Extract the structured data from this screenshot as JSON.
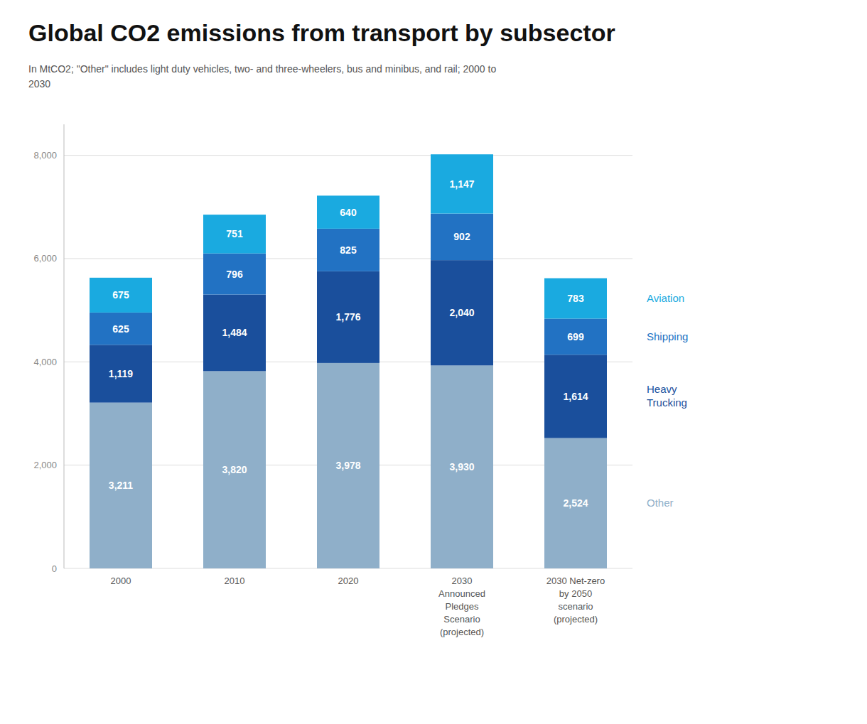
{
  "chart_data": {
    "type": "bar",
    "stacked": true,
    "title": "Global CO2 emissions from transport by subsector",
    "subtitle": "In MtCO2; \"Other\" includes light duty vehicles, two- and three-wheelers, bus and minibus, and rail; 2000 to\n2030",
    "categories": [
      "2000",
      "2010",
      "2020",
      "2030\nAnnounced\nPledges\nScenario\n(projected)",
      "2030 Net-zero\nby 2050\nscenario\n(projected)"
    ],
    "series": [
      {
        "name": "Other",
        "color": "#8fafc9",
        "values": [
          3211,
          3820,
          3978,
          3930,
          2524
        ],
        "value_labels": [
          "3,211",
          "3,820",
          "3,978",
          "3,930",
          "2,524"
        ]
      },
      {
        "name": "Heavy\nTrucking",
        "color": "#1a4f9c",
        "values": [
          1119,
          1484,
          1776,
          2040,
          1614
        ],
        "value_labels": [
          "1,119",
          "1,484",
          "1,776",
          "2,040",
          "1,614"
        ]
      },
      {
        "name": "Shipping",
        "color": "#2272c3",
        "values": [
          625,
          796,
          825,
          902,
          699
        ],
        "value_labels": [
          "625",
          "796",
          "825",
          "902",
          "699"
        ]
      },
      {
        "name": "Aviation",
        "color": "#1aaae0",
        "values": [
          675,
          751,
          640,
          1147,
          783
        ],
        "value_labels": [
          "675",
          "751",
          "640",
          "1,147",
          "783"
        ]
      }
    ],
    "ylim": [
      0,
      8600
    ],
    "yticks": [
      0,
      {
        "value": 2000,
        "label": "2,000"
      },
      {
        "value": 4000,
        "label": "4,000"
      },
      {
        "value": 6000,
        "label": "6,000"
      },
      {
        "value": 8000,
        "label": "8,000"
      }
    ],
    "grid": true,
    "data_labels": true,
    "legend": "right"
  }
}
